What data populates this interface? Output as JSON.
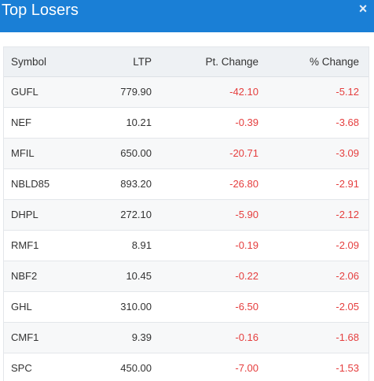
{
  "header": {
    "title": "Top Losers",
    "close_glyph": "×",
    "color": "#1a7fd6"
  },
  "table": {
    "columns": [
      "Symbol",
      "LTP",
      "Pt. Change",
      "% Change"
    ],
    "rows": [
      {
        "symbol": "GUFL",
        "ltp": "779.90",
        "pt_change": "-42.10",
        "pct_change": "-5.12"
      },
      {
        "symbol": "NEF",
        "ltp": "10.21",
        "pt_change": "-0.39",
        "pct_change": "-3.68"
      },
      {
        "symbol": "MFIL",
        "ltp": "650.00",
        "pt_change": "-20.71",
        "pct_change": "-3.09"
      },
      {
        "symbol": "NBLD85",
        "ltp": "893.20",
        "pt_change": "-26.80",
        "pct_change": "-2.91"
      },
      {
        "symbol": "DHPL",
        "ltp": "272.10",
        "pt_change": "-5.90",
        "pct_change": "-2.12"
      },
      {
        "symbol": "RMF1",
        "ltp": "8.91",
        "pt_change": "-0.19",
        "pct_change": "-2.09"
      },
      {
        "symbol": "NBF2",
        "ltp": "10.45",
        "pt_change": "-0.22",
        "pct_change": "-2.06"
      },
      {
        "symbol": "GHL",
        "ltp": "310.00",
        "pt_change": "-6.50",
        "pct_change": "-2.05"
      },
      {
        "symbol": "CMF1",
        "ltp": "9.39",
        "pt_change": "-0.16",
        "pct_change": "-1.68"
      },
      {
        "symbol": "SPC",
        "ltp": "450.00",
        "pt_change": "-7.00",
        "pct_change": "-1.53"
      }
    ],
    "negative_color": "#e53e3e"
  }
}
